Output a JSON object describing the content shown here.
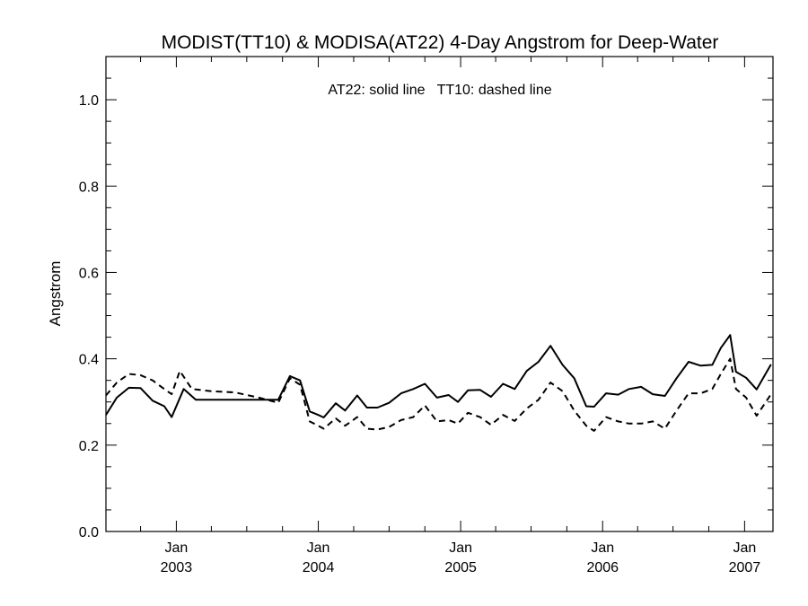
{
  "chart_data": {
    "type": "line",
    "title": "MODIST(TT10) & MODISA(AT22) 4-Day Angstrom for Deep-Water",
    "annotation": "AT22: solid line   TT10: dashed line",
    "xlabel": "",
    "ylabel": "Angstrom",
    "xlim": [
      "2002-07-04",
      "2007-03-15"
    ],
    "ylim": [
      0.0,
      1.1
    ],
    "yticks": [
      "0.0",
      "0.2",
      "0.4",
      "0.6",
      "0.8",
      "1.0"
    ],
    "yticks_values": [
      0.0,
      0.2,
      0.4,
      0.6,
      0.8,
      1.0
    ],
    "xticks": [
      {
        "month": "Jan",
        "year": "2003",
        "date": "2003-01-01"
      },
      {
        "month": "Jan",
        "year": "2004",
        "date": "2004-01-01"
      },
      {
        "month": "Jan",
        "year": "2005",
        "date": "2005-01-01"
      },
      {
        "month": "Jan",
        "year": "2006",
        "date": "2006-01-01"
      },
      {
        "month": "Jan",
        "year": "2007",
        "date": "2007-01-01"
      }
    ],
    "grid": false,
    "series": [
      {
        "name": "AT22",
        "style": "solid",
        "color": "#000000",
        "points": [
          [
            "2002-07-04",
            0.27
          ],
          [
            "2002-08-01",
            0.31
          ],
          [
            "2002-09-01",
            0.333
          ],
          [
            "2002-10-01",
            0.332
          ],
          [
            "2002-11-01",
            0.303
          ],
          [
            "2002-12-01",
            0.29
          ],
          [
            "2002-12-20",
            0.265
          ],
          [
            "2003-01-20",
            0.33
          ],
          [
            "2003-02-20",
            0.305
          ],
          [
            "2003-03-20",
            0.305
          ],
          [
            "2003-05-01",
            0.305
          ],
          [
            "2003-07-01",
            0.305
          ],
          [
            "2003-09-01",
            0.305
          ],
          [
            "2003-09-20",
            0.305
          ],
          [
            "2003-10-20",
            0.36
          ],
          [
            "2003-11-15",
            0.35
          ],
          [
            "2003-12-10",
            0.278
          ],
          [
            "2004-01-01",
            0.27
          ],
          [
            "2004-01-15",
            0.264
          ],
          [
            "2004-02-15",
            0.297
          ],
          [
            "2004-03-10",
            0.28
          ],
          [
            "2004-04-10",
            0.315
          ],
          [
            "2004-05-05",
            0.287
          ],
          [
            "2004-06-01",
            0.287
          ],
          [
            "2004-07-01",
            0.298
          ],
          [
            "2004-08-01",
            0.32
          ],
          [
            "2004-09-01",
            0.33
          ],
          [
            "2004-10-01",
            0.342
          ],
          [
            "2004-11-01",
            0.31
          ],
          [
            "2004-12-01",
            0.316
          ],
          [
            "2004-12-25",
            0.3
          ],
          [
            "2005-01-20",
            0.327
          ],
          [
            "2005-02-20",
            0.328
          ],
          [
            "2005-03-20",
            0.312
          ],
          [
            "2005-04-20",
            0.342
          ],
          [
            "2005-05-20",
            0.33
          ],
          [
            "2005-06-20",
            0.372
          ],
          [
            "2005-07-20",
            0.393
          ],
          [
            "2005-08-20",
            0.43
          ],
          [
            "2005-09-20",
            0.386
          ],
          [
            "2005-10-20",
            0.355
          ],
          [
            "2005-11-20",
            0.29
          ],
          [
            "2005-12-10",
            0.289
          ],
          [
            "2006-01-10",
            0.32
          ],
          [
            "2006-02-10",
            0.317
          ],
          [
            "2006-03-10",
            0.33
          ],
          [
            "2006-04-10",
            0.335
          ],
          [
            "2006-05-10",
            0.318
          ],
          [
            "2006-06-10",
            0.314
          ],
          [
            "2006-07-10",
            0.355
          ],
          [
            "2006-08-10",
            0.393
          ],
          [
            "2006-09-10",
            0.384
          ],
          [
            "2006-10-10",
            0.386
          ],
          [
            "2006-11-01",
            0.425
          ],
          [
            "2006-11-25",
            0.455
          ],
          [
            "2006-12-10",
            0.37
          ],
          [
            "2007-01-05",
            0.356
          ],
          [
            "2007-02-01",
            0.329
          ],
          [
            "2007-03-10",
            0.387
          ]
        ]
      },
      {
        "name": "TT10",
        "style": "dashed",
        "color": "#000000",
        "points": [
          [
            "2002-07-04",
            0.315
          ],
          [
            "2002-08-01",
            0.345
          ],
          [
            "2002-09-01",
            0.365
          ],
          [
            "2002-10-01",
            0.362
          ],
          [
            "2002-11-01",
            0.35
          ],
          [
            "2002-12-01",
            0.33
          ],
          [
            "2002-12-20",
            0.318
          ],
          [
            "2003-01-10",
            0.372
          ],
          [
            "2003-02-10",
            0.33
          ],
          [
            "2003-04-01",
            0.325
          ],
          [
            "2003-06-01",
            0.322
          ],
          [
            "2003-08-01",
            0.31
          ],
          [
            "2003-09-20",
            0.298
          ],
          [
            "2003-10-20",
            0.355
          ],
          [
            "2003-11-15",
            0.34
          ],
          [
            "2003-12-10",
            0.255
          ],
          [
            "2004-01-01",
            0.245
          ],
          [
            "2004-01-15",
            0.238
          ],
          [
            "2004-02-15",
            0.262
          ],
          [
            "2004-03-10",
            0.245
          ],
          [
            "2004-04-10",
            0.265
          ],
          [
            "2004-05-05",
            0.238
          ],
          [
            "2004-06-01",
            0.236
          ],
          [
            "2004-07-01",
            0.242
          ],
          [
            "2004-08-01",
            0.258
          ],
          [
            "2004-09-01",
            0.265
          ],
          [
            "2004-10-01",
            0.292
          ],
          [
            "2004-11-01",
            0.255
          ],
          [
            "2004-12-01",
            0.258
          ],
          [
            "2004-12-25",
            0.25
          ],
          [
            "2005-01-20",
            0.275
          ],
          [
            "2005-02-20",
            0.265
          ],
          [
            "2005-03-20",
            0.247
          ],
          [
            "2005-04-20",
            0.27
          ],
          [
            "2005-05-20",
            0.256
          ],
          [
            "2005-06-20",
            0.285
          ],
          [
            "2005-07-20",
            0.305
          ],
          [
            "2005-08-20",
            0.345
          ],
          [
            "2005-09-20",
            0.325
          ],
          [
            "2005-10-20",
            0.28
          ],
          [
            "2005-11-20",
            0.245
          ],
          [
            "2005-12-10",
            0.233
          ],
          [
            "2006-01-10",
            0.265
          ],
          [
            "2006-02-10",
            0.255
          ],
          [
            "2006-03-10",
            0.25
          ],
          [
            "2006-04-10",
            0.25
          ],
          [
            "2006-05-10",
            0.255
          ],
          [
            "2006-06-10",
            0.238
          ],
          [
            "2006-07-10",
            0.28
          ],
          [
            "2006-08-10",
            0.32
          ],
          [
            "2006-09-10",
            0.32
          ],
          [
            "2006-10-10",
            0.33
          ],
          [
            "2006-11-01",
            0.365
          ],
          [
            "2006-11-25",
            0.4
          ],
          [
            "2006-12-10",
            0.33
          ],
          [
            "2007-01-05",
            0.31
          ],
          [
            "2007-02-01",
            0.268
          ],
          [
            "2007-03-10",
            0.318
          ]
        ]
      }
    ]
  }
}
